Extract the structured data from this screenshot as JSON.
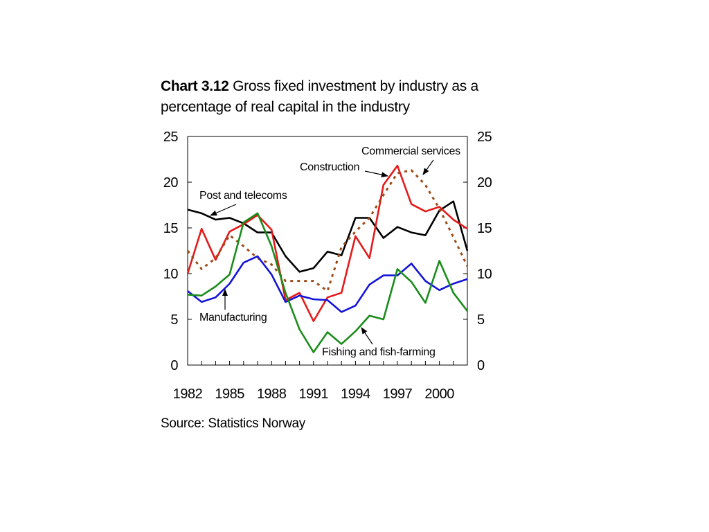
{
  "title": {
    "prefix": "Chart 3.12",
    "text": "Gross fixed investment by industry as a percentage of real capital in the industry"
  },
  "source": "Source: Statistics Norway",
  "chart_data": {
    "type": "line",
    "title": "Chart 3.12 Gross fixed investment by industry as a percentage of real capital in the industry",
    "xlabel": "",
    "ylabel": "",
    "xlim": [
      1982,
      2002
    ],
    "ylim": [
      0,
      25
    ],
    "grid": false,
    "x_tick_labels": [
      "1982",
      "1985",
      "1988",
      "1991",
      "1994",
      "1997",
      "2000"
    ],
    "y_tick_labels": [
      "0",
      "5",
      "10",
      "15",
      "20",
      "25"
    ],
    "x": [
      1982,
      1983,
      1984,
      1985,
      1986,
      1987,
      1988,
      1989,
      1990,
      1991,
      1992,
      1993,
      1994,
      1995,
      1996,
      1997,
      1998,
      1999,
      2000,
      2001,
      2002
    ],
    "series": [
      {
        "name": "Post and telecoms",
        "color": "#000000",
        "dash": false,
        "values": [
          17.0,
          16.6,
          15.9,
          16.1,
          15.5,
          14.5,
          14.5,
          11.9,
          10.2,
          10.6,
          12.4,
          12.0,
          16.1,
          16.1,
          13.9,
          15.1,
          14.5,
          14.2,
          16.9,
          17.9,
          12.5
        ]
      },
      {
        "name": "Construction",
        "color": "#e41a1a",
        "dash": false,
        "values": [
          10.0,
          14.9,
          11.5,
          14.6,
          15.4,
          16.4,
          14.8,
          7.1,
          7.9,
          4.8,
          7.4,
          7.9,
          14.1,
          11.7,
          19.7,
          21.8,
          17.6,
          16.8,
          17.3,
          15.9,
          14.9
        ]
      },
      {
        "name": "Commercial services",
        "color": "#9b4a14",
        "dash": true,
        "values": [
          12.5,
          10.5,
          11.7,
          14.2,
          13.0,
          11.7,
          11.0,
          9.2,
          9.2,
          9.2,
          8.1,
          12.9,
          14.6,
          16.1,
          18.6,
          21.0,
          21.3,
          19.7,
          17.1,
          14.0,
          10.8
        ]
      },
      {
        "name": "Manufacturing",
        "color": "#1313d9",
        "dash": false,
        "values": [
          8.1,
          6.9,
          7.4,
          8.9,
          11.2,
          11.9,
          9.9,
          6.9,
          7.6,
          7.2,
          7.1,
          5.8,
          6.5,
          8.8,
          9.8,
          9.8,
          11.1,
          9.2,
          8.2,
          8.9,
          9.4
        ]
      },
      {
        "name": "Fishing and fish-farming",
        "color": "#1a8c1a",
        "dash": false,
        "values": [
          7.7,
          7.6,
          8.6,
          9.9,
          15.6,
          16.6,
          13.0,
          7.9,
          3.9,
          1.4,
          3.6,
          2.3,
          3.7,
          5.4,
          5.0,
          10.5,
          9.1,
          6.8,
          11.4,
          7.9,
          5.9
        ]
      }
    ],
    "annotations": [
      {
        "text": "Commercial services",
        "series": "Commercial services"
      },
      {
        "text": "Construction",
        "series": "Construction"
      },
      {
        "text": "Post and telecoms",
        "series": "Post and telecoms"
      },
      {
        "text": "Manufacturing",
        "series": "Manufacturing"
      },
      {
        "text": "Fishing and fish-farming",
        "series": "Fishing and fish-farming"
      }
    ]
  }
}
